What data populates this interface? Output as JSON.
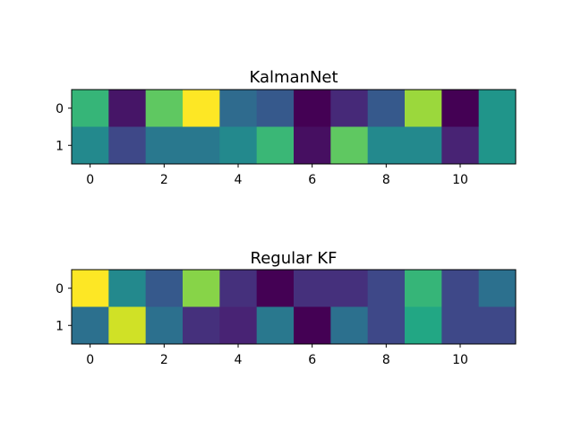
{
  "colors": {
    "colormap": "viridis",
    "axes_edge": "#000000",
    "background": "#ffffff"
  },
  "chart_data": [
    {
      "type": "heatmap",
      "title": "KalmanNet",
      "xlabel": "",
      "ylabel": "",
      "x_ticks": [
        "0",
        "2",
        "4",
        "6",
        "8",
        "10"
      ],
      "y_ticks": [
        "0",
        "1"
      ],
      "columns": 12,
      "rows": 2,
      "values": [
        [
          0.66,
          0.06,
          0.75,
          1.0,
          0.35,
          0.28,
          0.0,
          0.12,
          0.28,
          0.85,
          0.0,
          0.52
        ],
        [
          0.47,
          0.22,
          0.4,
          0.4,
          0.47,
          0.67,
          0.04,
          0.75,
          0.47,
          0.47,
          0.1,
          0.52
        ]
      ],
      "grid": false,
      "legend": "none"
    },
    {
      "type": "heatmap",
      "title": "Regular KF",
      "xlabel": "",
      "ylabel": "",
      "x_ticks": [
        "0",
        "2",
        "4",
        "6",
        "8",
        "10"
      ],
      "y_ticks": [
        "0",
        "1"
      ],
      "columns": 12,
      "rows": 2,
      "values": [
        [
          1.0,
          0.47,
          0.28,
          0.82,
          0.14,
          0.0,
          0.14,
          0.14,
          0.22,
          0.66,
          0.22,
          0.37
        ],
        [
          0.37,
          0.93,
          0.37,
          0.14,
          0.1,
          0.4,
          0.0,
          0.37,
          0.22,
          0.6,
          0.22,
          0.22
        ]
      ],
      "grid": false,
      "legend": "none"
    }
  ]
}
